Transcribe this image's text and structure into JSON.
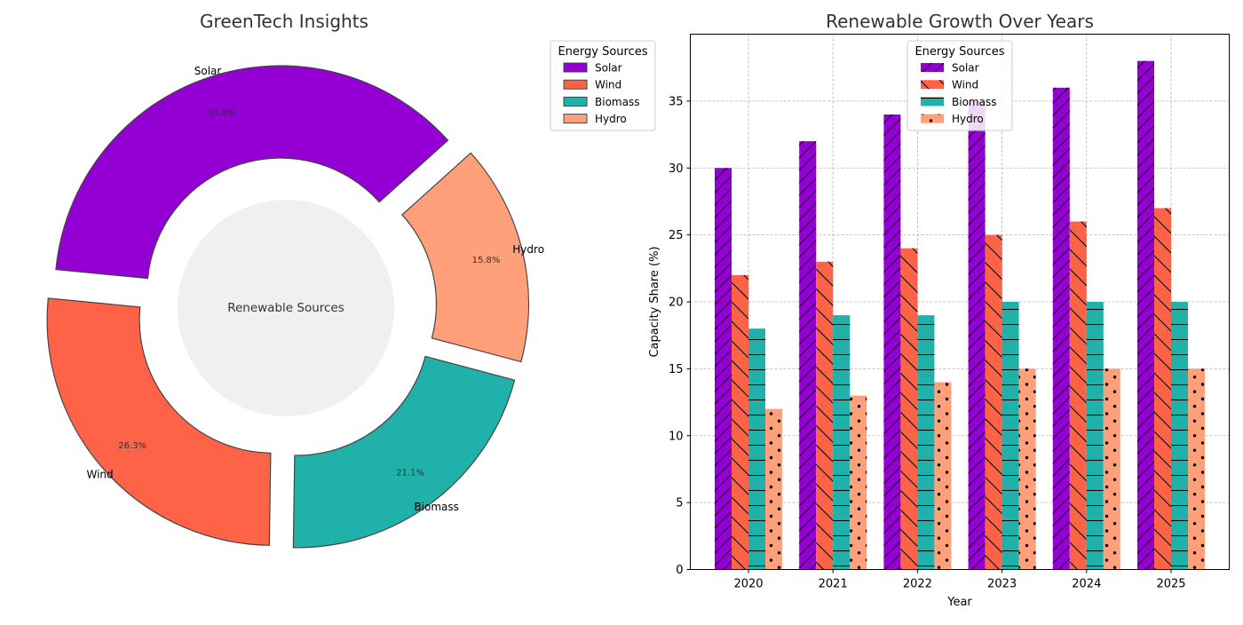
{
  "chart_data": [
    {
      "type": "pie",
      "title": "GreenTech Insights",
      "center_label": "Renewable Sources",
      "legend_title": "Energy Sources",
      "legend_position": "upper-right",
      "labels": [
        "Solar",
        "Wind",
        "Biomass",
        "Hydro"
      ],
      "values": [
        36.8,
        26.3,
        21.1,
        15.8
      ],
      "pct_labels": [
        "36.8%",
        "26.3%",
        "21.1%",
        "15.8%"
      ],
      "colors": [
        "#9400D3",
        "#FF6347",
        "#20B2AA",
        "#FFA07A"
      ]
    },
    {
      "type": "bar",
      "title": "Renewable Growth Over Years",
      "xlabel": "Year",
      "ylabel": "Capacity Share (%)",
      "legend_title": "Energy Sources",
      "legend_position": "upper-center",
      "grid": true,
      "categories": [
        "2020",
        "2021",
        "2022",
        "2023",
        "2024",
        "2025"
      ],
      "y_ticks": [
        "0",
        "5",
        "10",
        "15",
        "20",
        "25",
        "30",
        "35"
      ],
      "ylim": [
        0,
        40
      ],
      "series": [
        {
          "name": "Solar",
          "color": "#9400D3",
          "values": [
            30,
            32,
            34,
            35,
            36,
            38
          ]
        },
        {
          "name": "Wind",
          "color": "#FF6347",
          "values": [
            22,
            23,
            24,
            25,
            26,
            27
          ]
        },
        {
          "name": "Biomass",
          "color": "#20B2AA",
          "values": [
            18,
            19,
            19,
            20,
            20,
            20
          ]
        },
        {
          "name": "Hydro",
          "color": "#FFA07A",
          "values": [
            12,
            13,
            14,
            15,
            15,
            15
          ]
        }
      ]
    }
  ]
}
